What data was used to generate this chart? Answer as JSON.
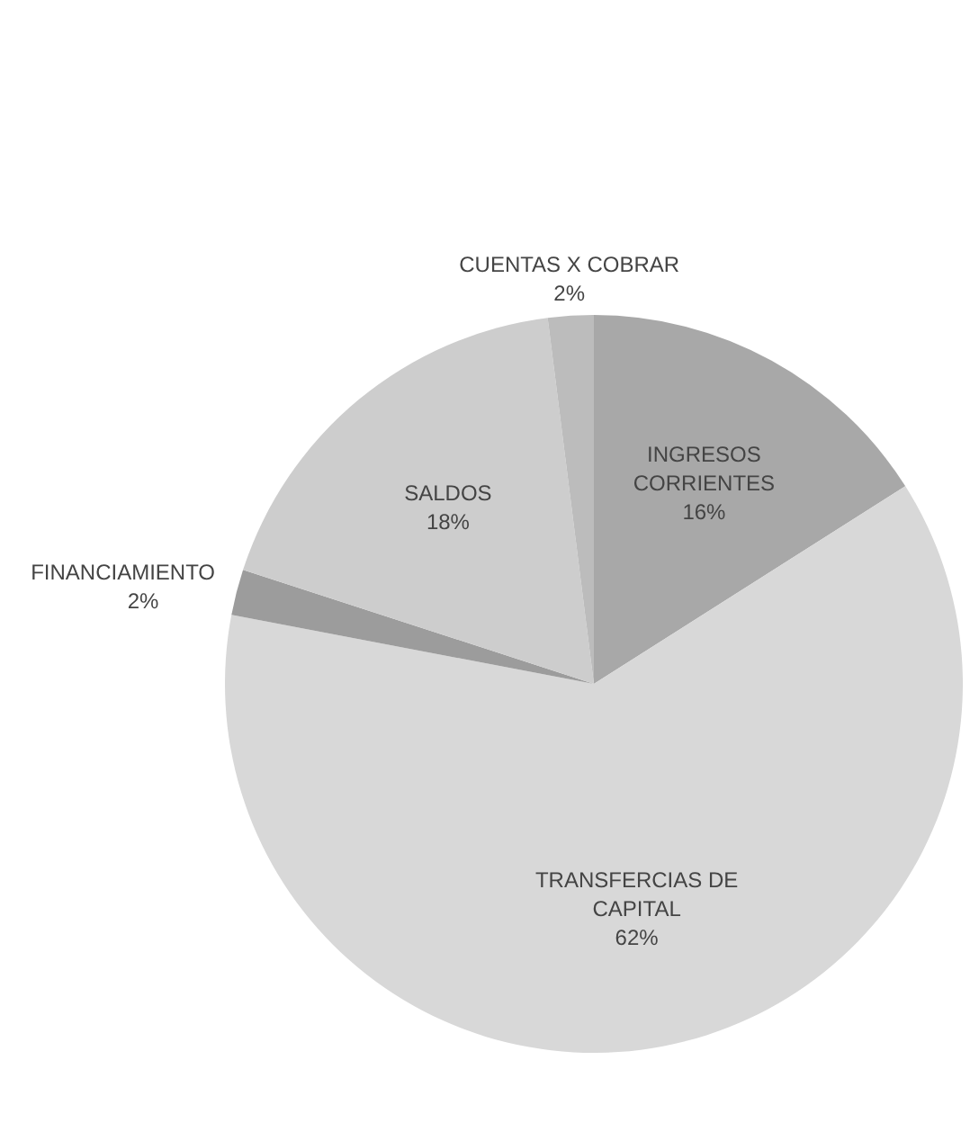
{
  "chart_data": {
    "type": "pie",
    "categories": [
      "INGRESOS CORRIENTES",
      "TRANSFERCIAS DE CAPITAL",
      "FINANCIAMIENTO",
      "SALDOS",
      "CUENTAS X COBRAR"
    ],
    "values": [
      16,
      62,
      2,
      18,
      2
    ],
    "value_labels": [
      "16%",
      "62%",
      "2%",
      "18%",
      "2%"
    ],
    "colors": [
      "#a8a8a8",
      "#d8d8d8",
      "#9c9c9c",
      "#cdcdcd",
      "#bcbcbc"
    ]
  }
}
